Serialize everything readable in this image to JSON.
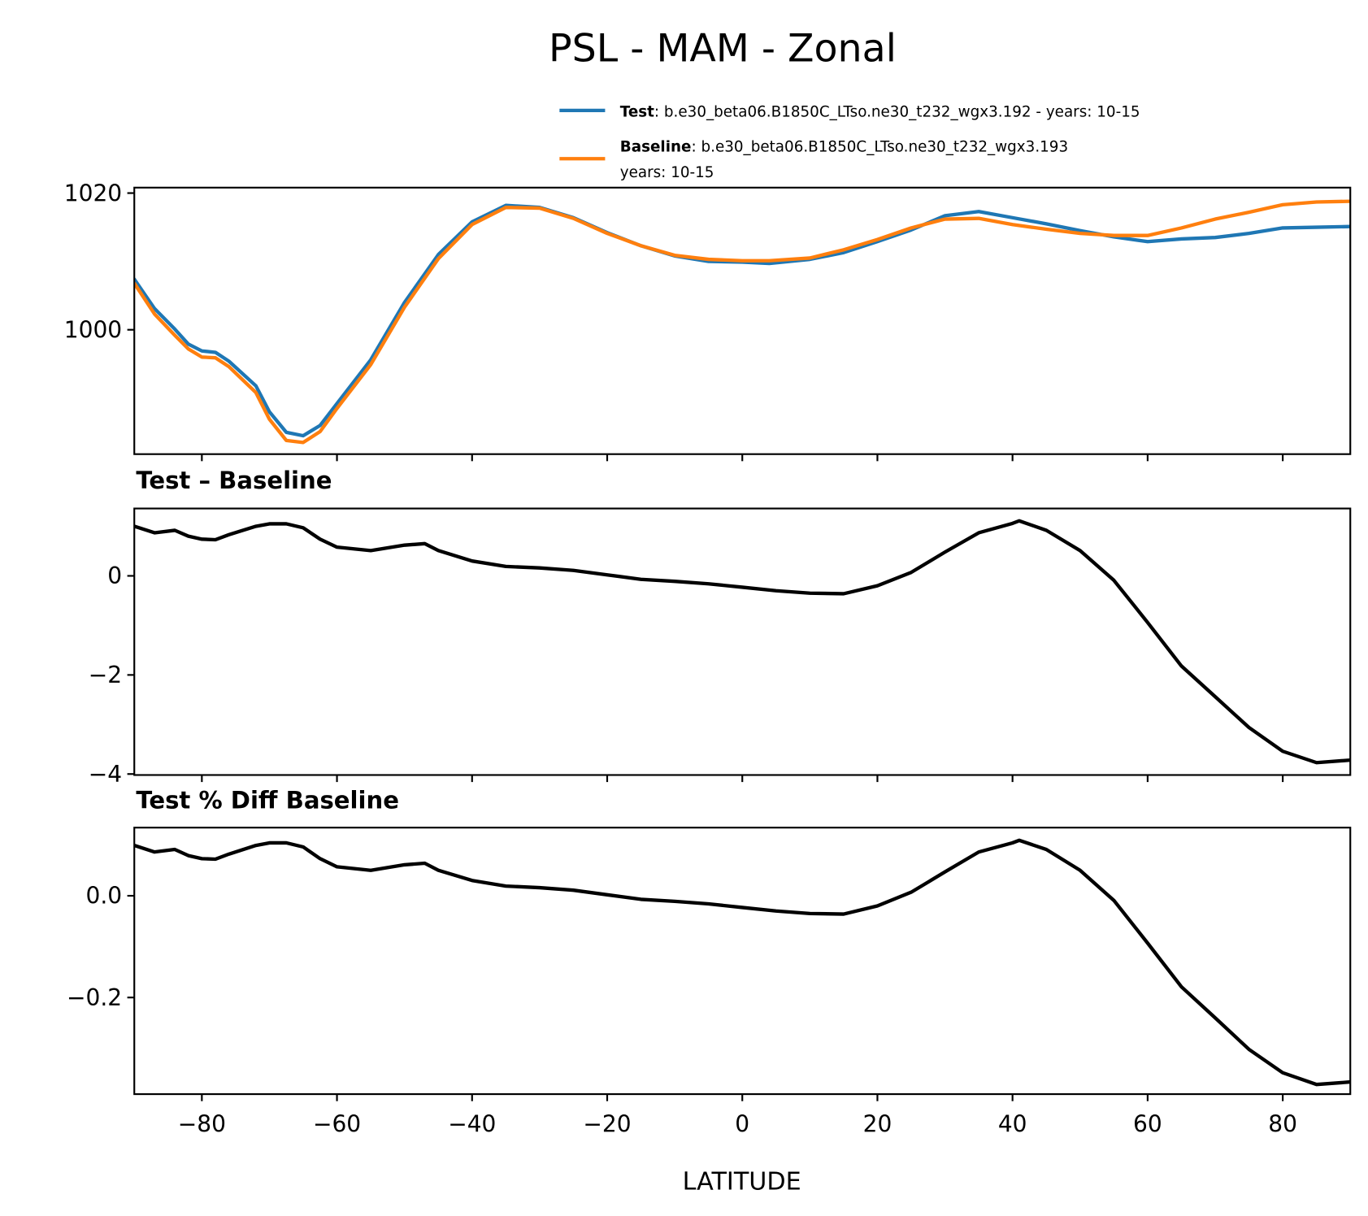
{
  "chart_data": [
    {
      "type": "line",
      "title": "PSL - MAM - Zonal",
      "xlabel": "",
      "ylabel": "",
      "xlim": [
        -90,
        90
      ],
      "ylim": [
        981.8,
        1020.8
      ],
      "yticks": [
        "1000",
        "1020"
      ],
      "ytick_values": [
        1000,
        1020
      ],
      "xticks": [
        -80,
        -60,
        -40,
        -20,
        0,
        20,
        40,
        60,
        80
      ],
      "legend": {
        "placement": "top-right",
        "entries": [
          {
            "bold": "Test",
            "text": ": b.e30_beta06.B1850C_LTso.ne30_t232_wgx3.192 - years: 10-15",
            "text2": ""
          },
          {
            "bold": "Baseline",
            "text": ": b.e30_beta06.B1850C_LTso.ne30_t232_wgx3.193",
            "text2": "years: 10-15"
          }
        ]
      },
      "x": [
        -90,
        -87,
        -84,
        -82,
        -80,
        -78,
        -76,
        -72,
        -70,
        -67.5,
        -65,
        -62.5,
        -60,
        -55,
        -50,
        -45,
        -40,
        -35,
        -30,
        -25,
        -20,
        -15,
        -10,
        -5,
        0,
        4,
        10,
        15,
        20,
        25,
        30,
        35,
        40,
        45,
        50,
        55,
        60,
        65,
        70,
        75,
        80,
        85,
        90
      ],
      "series": [
        {
          "name": "Test",
          "color": "#1f77b4",
          "values": [
            1007.4,
            1003.1,
            1000.1,
            997.9,
            996.9,
            996.7,
            995.4,
            991.8,
            988.0,
            985.0,
            984.5,
            986.0,
            989.2,
            995.6,
            1004.0,
            1011.0,
            1015.8,
            1018.2,
            1017.9,
            1016.4,
            1014.2,
            1012.3,
            1010.8,
            1010.0,
            1009.9,
            1009.7,
            1010.3,
            1011.3,
            1012.9,
            1014.6,
            1016.7,
            1017.3,
            1016.4,
            1015.5,
            1014.5,
            1013.6,
            1012.9,
            1013.3,
            1013.5,
            1014.1,
            1014.9,
            1015.0,
            1015.1
          ]
        },
        {
          "name": "Baseline",
          "color": "#ff7f0e",
          "values": [
            1006.8,
            1002.3,
            999.2,
            997.2,
            996.0,
            995.9,
            994.6,
            990.8,
            986.9,
            983.8,
            983.5,
            985.1,
            988.5,
            994.9,
            1003.3,
            1010.4,
            1015.4,
            1017.9,
            1017.8,
            1016.3,
            1014.1,
            1012.3,
            1010.9,
            1010.3,
            1010.1,
            1010.1,
            1010.5,
            1011.7,
            1013.2,
            1014.9,
            1016.2,
            1016.3,
            1015.4,
            1014.7,
            1014.1,
            1013.8,
            1013.8,
            1014.9,
            1016.2,
            1017.2,
            1018.3,
            1018.7,
            1018.8
          ]
        }
      ]
    },
    {
      "type": "line",
      "title": "Test – Baseline",
      "xlim": [
        -90,
        90
      ],
      "ylim": [
        -4.02,
        1.36
      ],
      "yticks": [
        "−4",
        "−2",
        "0"
      ],
      "ytick_values": [
        -4,
        -2,
        0
      ],
      "xticks": [
        -80,
        -60,
        -40,
        -20,
        0,
        20,
        40,
        60,
        80
      ],
      "x": [
        -90,
        -87,
        -84,
        -82,
        -80,
        -78,
        -76,
        -72,
        -70,
        -67.5,
        -65,
        -62.5,
        -60,
        -55,
        -50,
        -47,
        -45,
        -40,
        -35,
        -30,
        -25,
        -20,
        -15,
        -10,
        -5,
        0,
        5,
        10,
        15,
        20,
        25,
        30,
        35,
        40,
        41,
        45,
        50,
        55,
        60,
        65,
        70,
        75,
        80,
        85,
        90
      ],
      "series": [
        {
          "color": "#000000",
          "values": [
            1.0,
            0.87,
            0.92,
            0.8,
            0.74,
            0.73,
            0.83,
            1.0,
            1.05,
            1.05,
            0.97,
            0.74,
            0.58,
            0.51,
            0.62,
            0.65,
            0.51,
            0.3,
            0.19,
            0.16,
            0.11,
            0.02,
            -0.07,
            -0.11,
            -0.16,
            -0.23,
            -0.3,
            -0.35,
            -0.36,
            -0.2,
            0.07,
            0.48,
            0.87,
            1.06,
            1.11,
            0.92,
            0.51,
            -0.09,
            -0.94,
            -1.82,
            -2.44,
            -3.06,
            -3.54,
            -3.77,
            -3.72
          ]
        }
      ]
    },
    {
      "type": "line",
      "title": "Test % Diff Baseline",
      "xlabel": "LATITUDE",
      "xlim": [
        -90,
        90
      ],
      "ylim": [
        -0.39,
        0.134
      ],
      "yticks": [
        "−0.2",
        "0.0"
      ],
      "ytick_values": [
        -0.2,
        0.0
      ],
      "xticks": [
        -80,
        -60,
        -40,
        -20,
        0,
        20,
        40,
        60,
        80
      ],
      "xtick_labels": [
        "−80",
        "−60",
        "−40",
        "−20",
        "0",
        "20",
        "40",
        "60",
        "80"
      ],
      "x": [
        -90,
        -87,
        -84,
        -82,
        -80,
        -78,
        -76,
        -72,
        -70,
        -67.5,
        -65,
        -62.5,
        -60,
        -55,
        -50,
        -47,
        -45,
        -40,
        -35,
        -30,
        -25,
        -20,
        -15,
        -10,
        -5,
        0,
        5,
        10,
        15,
        20,
        25,
        30,
        35,
        40,
        41,
        45,
        50,
        55,
        60,
        65,
        70,
        75,
        80,
        85,
        90
      ],
      "series": [
        {
          "color": "#000000",
          "values": [
            0.099,
            0.086,
            0.091,
            0.079,
            0.073,
            0.072,
            0.082,
            0.099,
            0.104,
            0.104,
            0.096,
            0.073,
            0.057,
            0.05,
            0.061,
            0.064,
            0.05,
            0.03,
            0.019,
            0.016,
            0.011,
            0.002,
            -0.007,
            -0.011,
            -0.016,
            -0.023,
            -0.03,
            -0.035,
            -0.036,
            -0.02,
            0.007,
            0.047,
            0.086,
            0.104,
            0.109,
            0.091,
            0.05,
            -0.009,
            -0.093,
            -0.179,
            -0.24,
            -0.302,
            -0.348,
            -0.371,
            -0.366
          ]
        }
      ]
    }
  ]
}
